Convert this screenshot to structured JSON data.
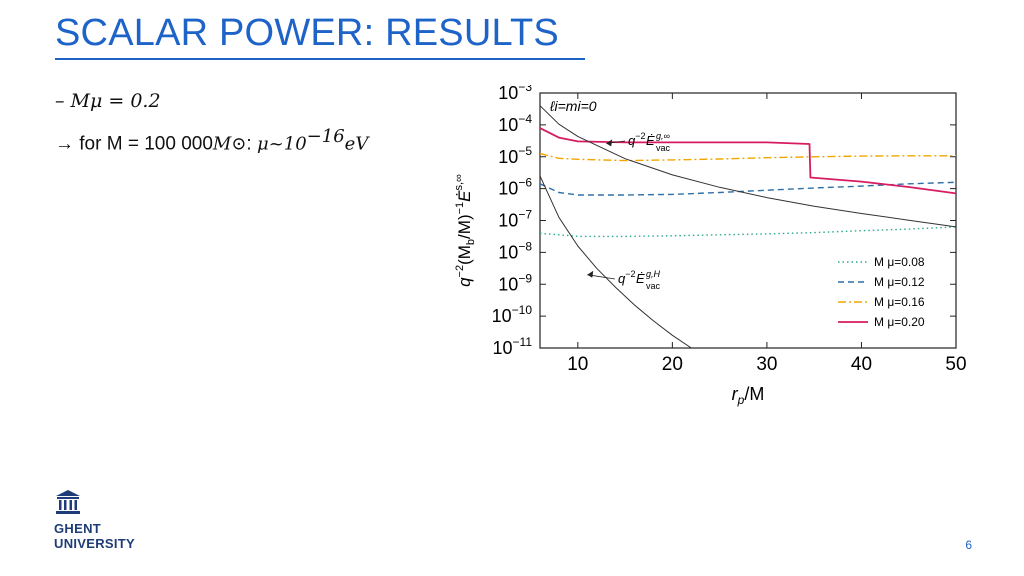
{
  "title": "SCALAR POWER: RESULTS",
  "bullets": {
    "line1": "– Mμ = 0.2",
    "line2_prefix": "→ for M = 100 000",
    "line2_msun": "M⊙",
    "line2_colon": ": ",
    "line2_mu": "μ~10",
    "line2_exp": "−16",
    "line2_unit": "eV"
  },
  "logo": {
    "line1": "GHENT",
    "line2": "UNIVERSITY",
    "icon": "university-building-icon"
  },
  "page_number": "6",
  "colors": {
    "accent": "#1E64C8",
    "series_008": "#2BA88F",
    "series_012": "#2F6FA8",
    "series_016": "#F0A500",
    "series_020": "#D81B60",
    "reference": "#333333"
  },
  "chart_data": {
    "type": "line",
    "xlabel": "r_p/M",
    "ylabel": "q^-2 (M_b/M)^-1 Ė^{s,∞}",
    "xlim": [
      6,
      50
    ],
    "ylim_log10": [
      -11,
      -3
    ],
    "y_scale": "log",
    "x_ticks": [
      10,
      20,
      30,
      40,
      50
    ],
    "y_ticks": [
      "10^-3",
      "10^-4",
      "10^-5",
      "10^-6",
      "10^-7",
      "10^-8",
      "10^-9",
      "10^-10",
      "10^-11"
    ],
    "corner_label": "ℓi=mi=0",
    "annotations": [
      {
        "text": "q^-2 Ė_vac^{g,∞}",
        "target_series": "ref_inf"
      },
      {
        "text": "q^-2 Ė_vac^{g,H}",
        "target_series": "ref_H"
      }
    ],
    "legend_position": "bottom-right",
    "series": [
      {
        "name": "M μ=0.08",
        "style": "dotted",
        "color": "#2BA88F",
        "x": [
          6,
          8,
          10,
          15,
          20,
          25,
          30,
          35,
          40,
          45,
          50
        ],
        "log10y": [
          -7.4,
          -7.45,
          -7.5,
          -7.5,
          -7.48,
          -7.45,
          -7.42,
          -7.38,
          -7.32,
          -7.27,
          -7.2
        ]
      },
      {
        "name": "M μ=0.12",
        "style": "dashed",
        "color": "#2F6FA8",
        "x": [
          6,
          8,
          10,
          15,
          20,
          25,
          30,
          35,
          40,
          45,
          50
        ],
        "log10y": [
          -5.85,
          -6.12,
          -6.2,
          -6.2,
          -6.18,
          -6.12,
          -6.05,
          -5.98,
          -5.92,
          -5.85,
          -5.8
        ]
      },
      {
        "name": "M μ=0.16",
        "style": "dashdot",
        "color": "#F0A500",
        "x": [
          6,
          8,
          10,
          15,
          20,
          25,
          30,
          35,
          40,
          45,
          50
        ],
        "log10y": [
          -4.9,
          -5.05,
          -5.08,
          -5.12,
          -5.1,
          -5.07,
          -5.03,
          -5.0,
          -4.98,
          -4.97,
          -4.97
        ]
      },
      {
        "name": "M μ=0.20",
        "style": "solid",
        "color": "#D81B60",
        "x": [
          6,
          8,
          10,
          15,
          20,
          25,
          30,
          34.5,
          34.6,
          40,
          45,
          50
        ],
        "log10y": [
          -4.1,
          -4.4,
          -4.52,
          -4.55,
          -4.55,
          -4.55,
          -4.55,
          -4.6,
          -5.65,
          -5.78,
          -5.95,
          -6.15
        ]
      },
      {
        "name": "ref_inf",
        "style": "solid",
        "color": "#333333",
        "x": [
          6,
          8,
          10,
          15,
          20,
          25,
          30,
          35,
          40,
          45,
          50
        ],
        "log10y": [
          -3.4,
          -3.98,
          -4.36,
          -5.06,
          -5.57,
          -5.96,
          -6.28,
          -6.55,
          -6.78,
          -6.99,
          -7.2
        ]
      },
      {
        "name": "ref_H",
        "style": "solid",
        "color": "#333333",
        "x": [
          6,
          8,
          10,
          12,
          14,
          16,
          18,
          20,
          22
        ],
        "log10y": [
          -5.6,
          -6.9,
          -7.8,
          -8.5,
          -9.1,
          -9.65,
          -10.15,
          -10.6,
          -11.0
        ]
      }
    ]
  }
}
